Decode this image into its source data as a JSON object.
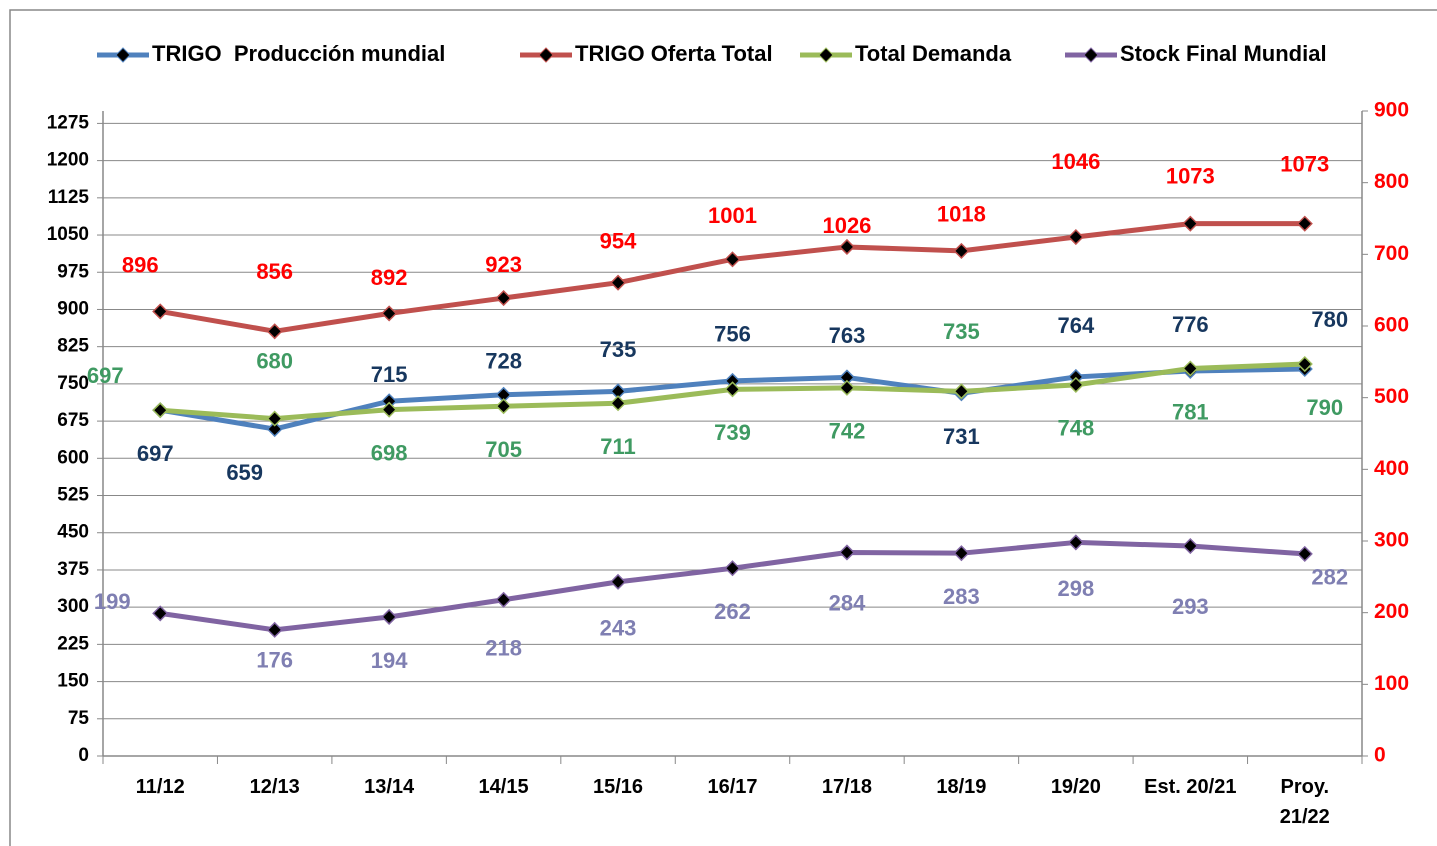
{
  "chart_data": {
    "type": "line",
    "categories": [
      "11/12",
      "12/13",
      "13/14",
      "14/15",
      "15/16",
      "16/17",
      "17/18",
      "18/19",
      "19/20",
      "Est. 20/21",
      "Proy.\n21/22"
    ],
    "series": [
      {
        "name": "TRIGO  Producción mundial",
        "color": "#4f81bd",
        "label_color": "#17375e",
        "values": [
          697,
          659,
          715,
          728,
          735,
          756,
          763,
          731,
          764,
          776,
          780
        ]
      },
      {
        "name": "TRIGO Oferta Total",
        "color": "#c0504d",
        "label_color": "#ff0000",
        "values": [
          896,
          856,
          892,
          923,
          954,
          1001,
          1026,
          1018,
          1046,
          1073,
          1073
        ]
      },
      {
        "name": "Total Demanda",
        "color": "#9bbb59",
        "label_color": "#3f9a62",
        "values": [
          697,
          680,
          698,
          705,
          711,
          739,
          742,
          735,
          748,
          781,
          790
        ]
      },
      {
        "name": "Stock Final Mundial",
        "color": "#8064a2",
        "label_color": "#7f7fb2",
        "axis": "y2",
        "values": [
          199,
          176,
          194,
          218,
          243,
          262,
          284,
          283,
          298,
          293,
          282
        ]
      }
    ],
    "ylim": [
      0,
      1300
    ],
    "yticks": [
      0,
      75,
      150,
      225,
      300,
      375,
      450,
      525,
      600,
      675,
      750,
      825,
      900,
      975,
      1050,
      1125,
      1200,
      1275
    ],
    "y2lim": [
      0,
      900
    ],
    "y2ticks": [
      0,
      100,
      200,
      300,
      400,
      500,
      600,
      700,
      800,
      900
    ],
    "y2_color": "#ff0000",
    "legend": "top"
  }
}
